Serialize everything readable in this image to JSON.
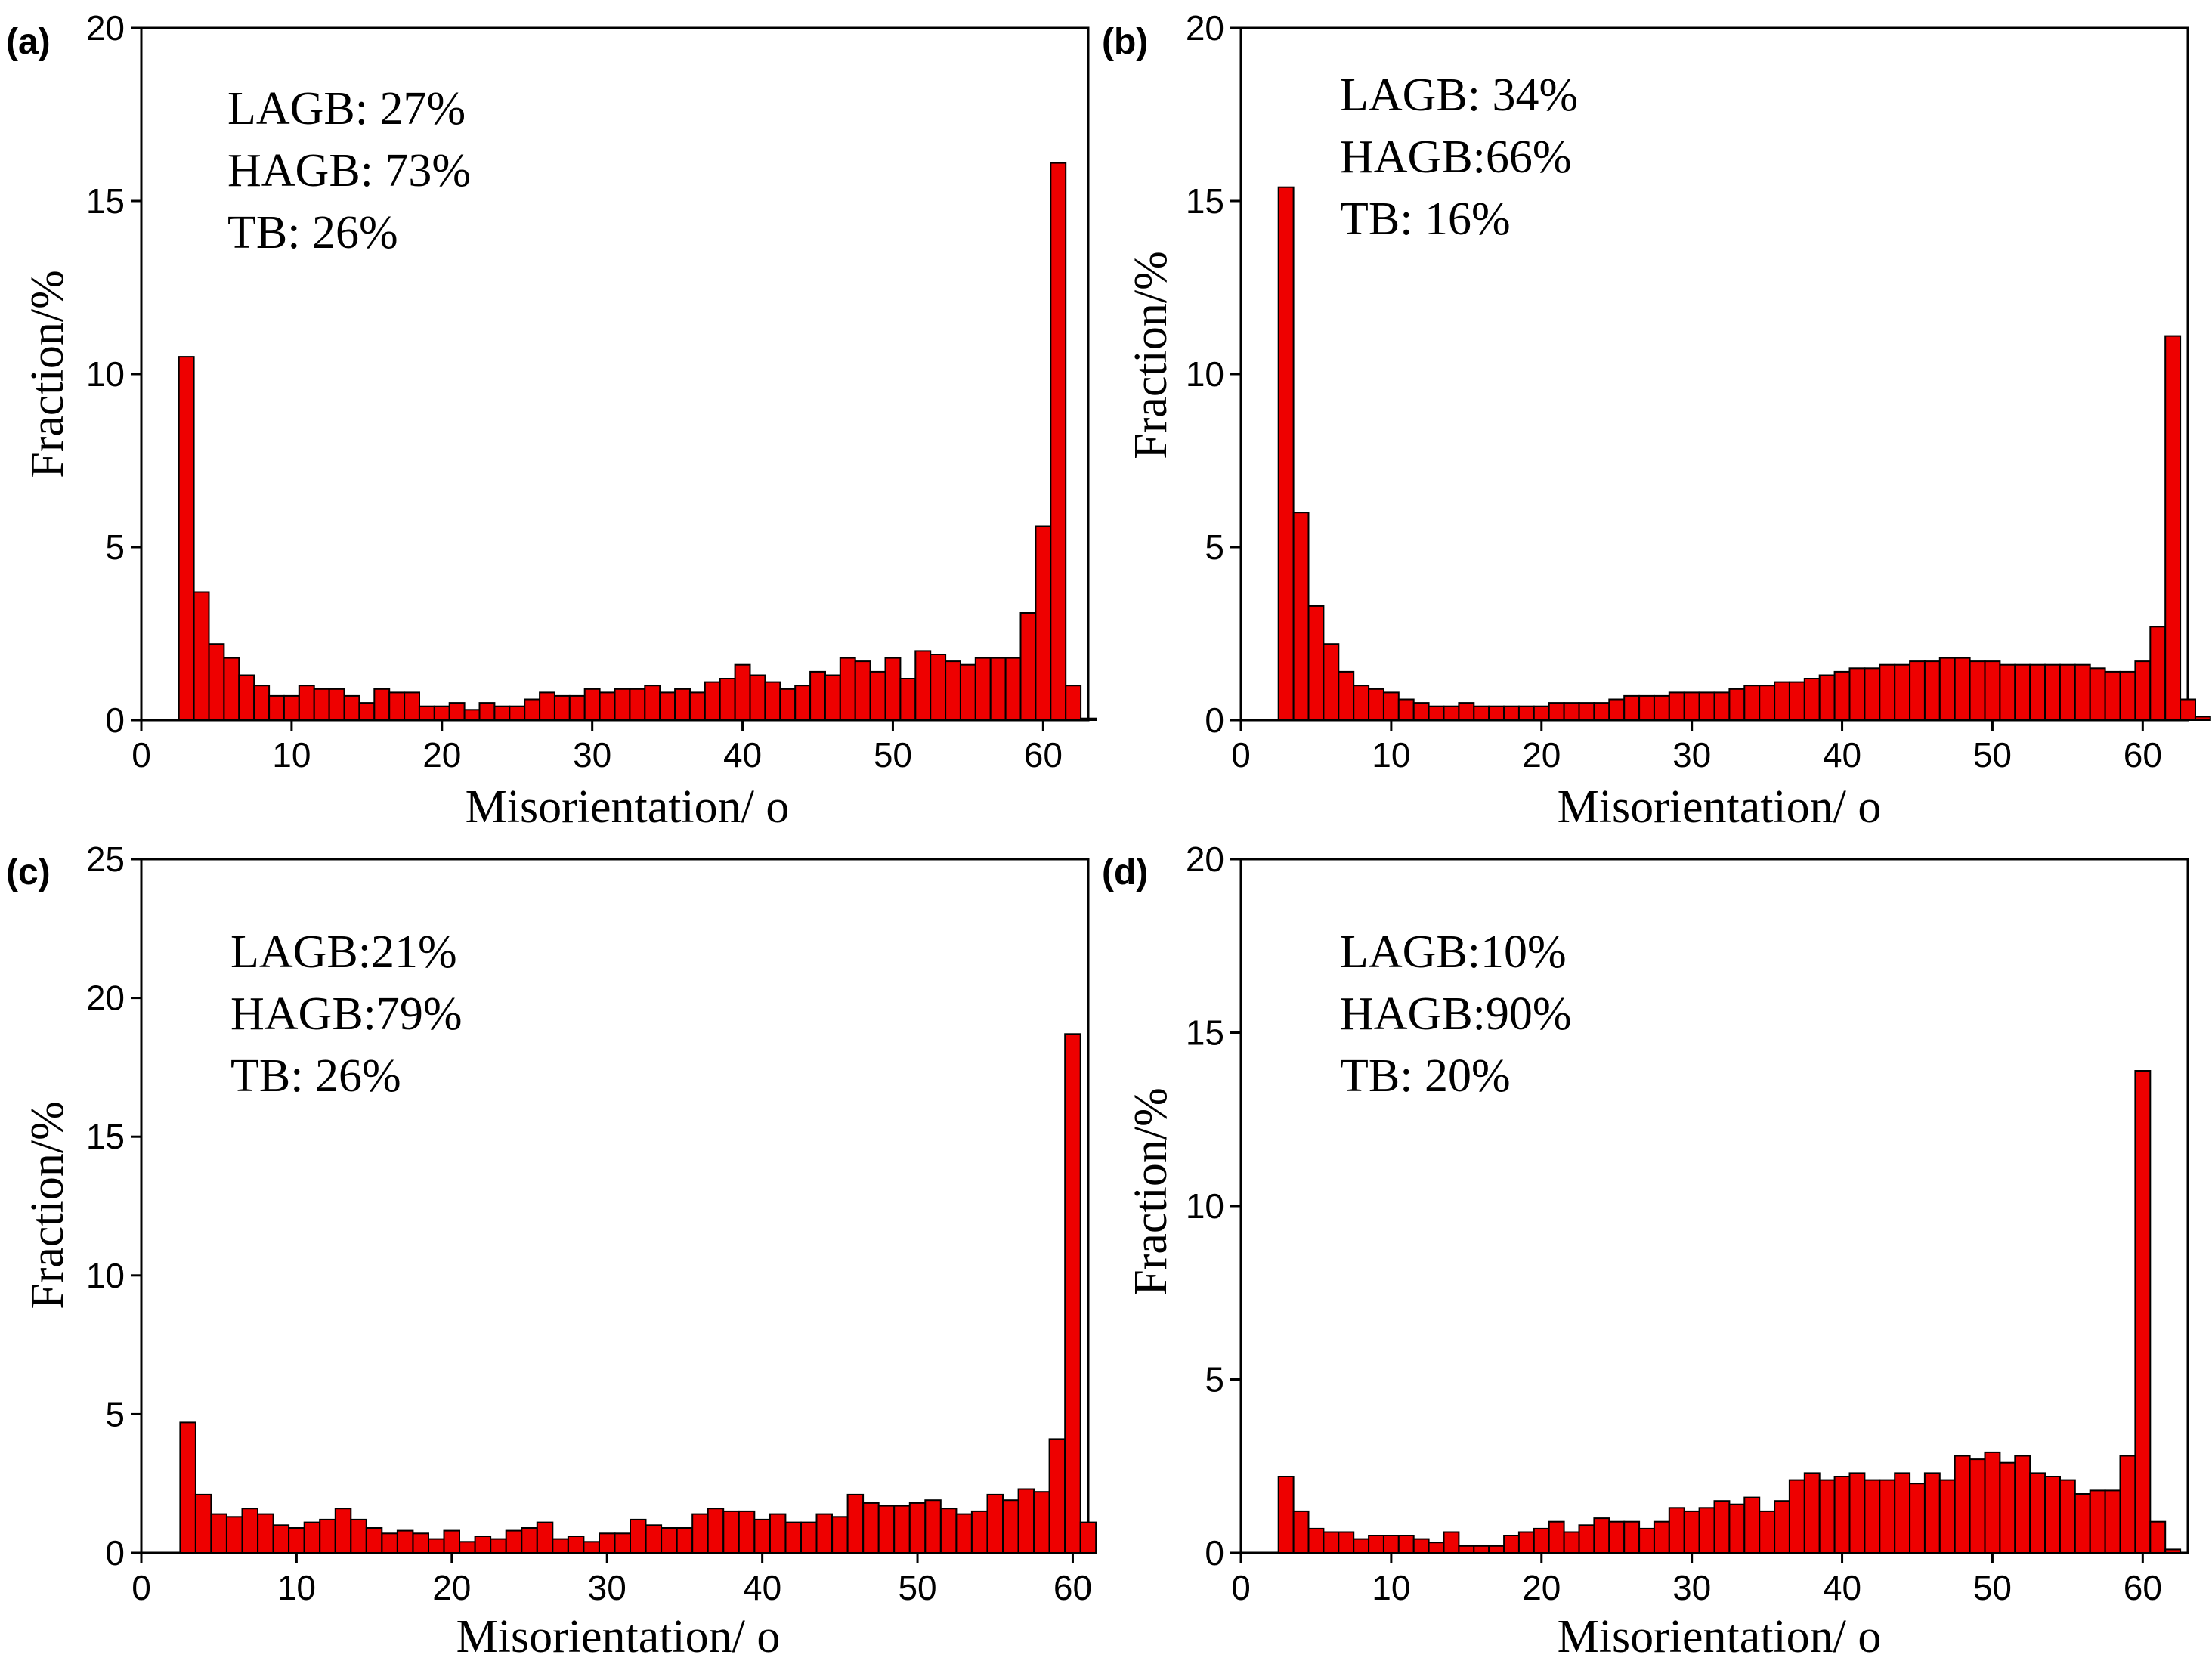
{
  "chart_data": [
    {
      "type": "bar",
      "panel_label": "(a)",
      "xlabel": "Misorientation/ o",
      "ylabel": "Fraction/%",
      "xlim": [
        0,
        63
      ],
      "ylim": [
        0,
        20
      ],
      "xticks": [
        "0",
        "10",
        "20",
        "30",
        "40",
        "50",
        "60"
      ],
      "yticks": [
        "0",
        "5",
        "10",
        "15",
        "20"
      ],
      "annotations": [
        "LAGB: 27%",
        "HAGB: 73%",
        "TB: 26%"
      ],
      "bin_start": 2.5,
      "bin_width": 1,
      "values": [
        10.5,
        3.7,
        2.2,
        1.8,
        1.3,
        1.0,
        0.7,
        0.7,
        1.0,
        0.9,
        0.9,
        0.7,
        0.5,
        0.9,
        0.8,
        0.8,
        0.4,
        0.4,
        0.5,
        0.3,
        0.5,
        0.4,
        0.4,
        0.6,
        0.8,
        0.7,
        0.7,
        0.9,
        0.8,
        0.9,
        0.9,
        1.0,
        0.8,
        0.9,
        0.8,
        1.1,
        1.2,
        1.6,
        1.3,
        1.1,
        0.9,
        1.0,
        1.4,
        1.3,
        1.8,
        1.7,
        1.4,
        1.8,
        1.2,
        2.0,
        1.9,
        1.7,
        1.6,
        1.8,
        1.8,
        1.8,
        3.1,
        5.6,
        16.1,
        1.0,
        0.05
      ]
    },
    {
      "type": "bar",
      "panel_label": "(b)",
      "xlabel": "Misorientation/ o",
      "ylabel": "Fraction/%",
      "xlim": [
        0,
        63
      ],
      "ylim": [
        0,
        20
      ],
      "xticks": [
        "0",
        "10",
        "20",
        "30",
        "40",
        "50",
        "60"
      ],
      "yticks": [
        "0",
        "5",
        "10",
        "15",
        "20"
      ],
      "annotations": [
        "LAGB: 34%",
        "HAGB:66%",
        "TB: 16%"
      ],
      "bin_start": 2.5,
      "bin_width": 1,
      "values": [
        15.4,
        6.0,
        3.3,
        2.2,
        1.4,
        1.0,
        0.9,
        0.8,
        0.6,
        0.5,
        0.4,
        0.4,
        0.5,
        0.4,
        0.4,
        0.4,
        0.4,
        0.4,
        0.5,
        0.5,
        0.5,
        0.5,
        0.6,
        0.7,
        0.7,
        0.7,
        0.8,
        0.8,
        0.8,
        0.8,
        0.9,
        1.0,
        1.0,
        1.1,
        1.1,
        1.2,
        1.3,
        1.4,
        1.5,
        1.5,
        1.6,
        1.6,
        1.7,
        1.7,
        1.8,
        1.8,
        1.7,
        1.7,
        1.6,
        1.6,
        1.6,
        1.6,
        1.6,
        1.6,
        1.5,
        1.4,
        1.4,
        1.7,
        2.7,
        11.1,
        0.6,
        0.1
      ]
    },
    {
      "type": "bar",
      "panel_label": "(c)",
      "xlabel": "Misorientation/ o",
      "ylabel": "Fraction/%",
      "xlim": [
        0,
        61
      ],
      "ylim": [
        0,
        25
      ],
      "xticks": [
        "0",
        "10",
        "20",
        "30",
        "40",
        "50",
        "60"
      ],
      "yticks": [
        "0",
        "5",
        "10",
        "15",
        "20",
        "25"
      ],
      "annotations": [
        "LAGB:21%",
        "HAGB:79%",
        "TB: 26%"
      ],
      "bin_start": 2.5,
      "bin_width": 1,
      "values": [
        4.7,
        2.1,
        1.4,
        1.3,
        1.6,
        1.4,
        1.0,
        0.9,
        1.1,
        1.2,
        1.6,
        1.2,
        0.9,
        0.7,
        0.8,
        0.7,
        0.5,
        0.8,
        0.4,
        0.6,
        0.5,
        0.8,
        0.9,
        1.1,
        0.5,
        0.6,
        0.4,
        0.7,
        0.7,
        1.2,
        1.0,
        0.9,
        0.9,
        1.4,
        1.6,
        1.5,
        1.5,
        1.2,
        1.4,
        1.1,
        1.1,
        1.4,
        1.3,
        2.1,
        1.8,
        1.7,
        1.7,
        1.8,
        1.9,
        1.6,
        1.4,
        1.5,
        2.1,
        1.9,
        2.3,
        2.2,
        4.1,
        18.7,
        1.1
      ]
    },
    {
      "type": "bar",
      "panel_label": "(d)",
      "xlabel": "Misorientation/ o",
      "ylabel": "Fraction/%",
      "xlim": [
        0,
        63
      ],
      "ylim": [
        0,
        20
      ],
      "xticks": [
        "0",
        "10",
        "20",
        "30",
        "40",
        "50",
        "60"
      ],
      "yticks": [
        "0",
        "5",
        "10",
        "15",
        "20"
      ],
      "annotations": [
        "LAGB:10%",
        "HAGB:90%",
        "TB: 20%"
      ],
      "bin_start": 2.5,
      "bin_width": 1,
      "values": [
        2.2,
        1.2,
        0.7,
        0.6,
        0.6,
        0.4,
        0.5,
        0.5,
        0.5,
        0.4,
        0.3,
        0.6,
        0.2,
        0.2,
        0.2,
        0.5,
        0.6,
        0.7,
        0.9,
        0.6,
        0.8,
        1.0,
        0.9,
        0.9,
        0.7,
        0.9,
        1.3,
        1.2,
        1.3,
        1.5,
        1.4,
        1.6,
        1.2,
        1.5,
        2.1,
        2.3,
        2.1,
        2.2,
        2.3,
        2.1,
        2.1,
        2.3,
        2.0,
        2.3,
        2.1,
        2.8,
        2.7,
        2.9,
        2.6,
        2.8,
        2.3,
        2.2,
        2.1,
        1.7,
        1.8,
        1.8,
        2.8,
        13.9,
        0.9,
        0.1
      ]
    }
  ]
}
